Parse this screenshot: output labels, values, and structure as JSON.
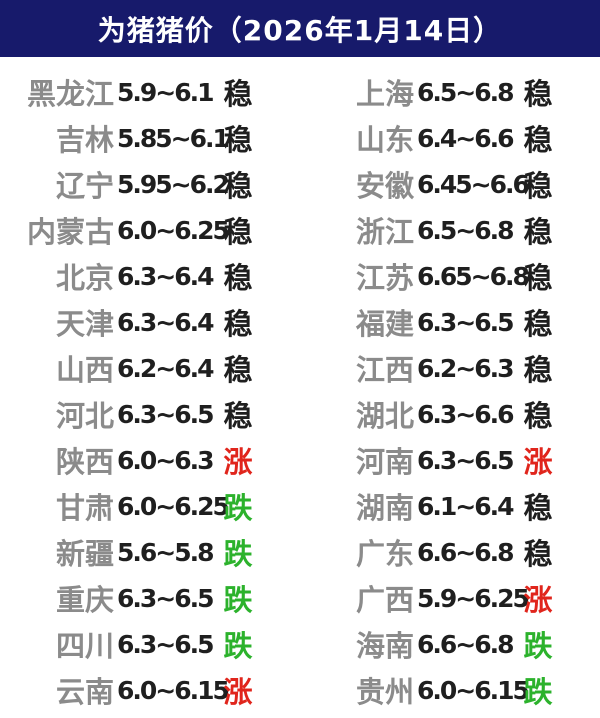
{
  "header": {
    "title": "为猪猪价（2026年1月14日）"
  },
  "colors": {
    "header_bg": "#171a6b",
    "title_text": "#ffffff",
    "province": "#8b8b8b",
    "price": "#1f1f1f",
    "stable": "#1f1f1f",
    "up": "#e0251c",
    "down": "#2cb22c"
  },
  "chart_data": {
    "type": "table",
    "title": "为猪猪价（2026年1月14日）",
    "layout": "two-column, left column rows 0-13, right column rows 14-27",
    "rows": [
      {
        "province": "黑龙江",
        "range": "5.9~6.1",
        "trend": "稳"
      },
      {
        "province": "吉林",
        "range": "5.85~6.1",
        "trend": "稳"
      },
      {
        "province": "辽宁",
        "range": "5.95~6.2",
        "trend": "稳"
      },
      {
        "province": "内蒙古",
        "range": "6.0~6.25",
        "trend": "稳"
      },
      {
        "province": "北京",
        "range": "6.3~6.4",
        "trend": "稳"
      },
      {
        "province": "天津",
        "range": "6.3~6.4",
        "trend": "稳"
      },
      {
        "province": "山西",
        "range": "6.2~6.4",
        "trend": "稳"
      },
      {
        "province": "河北",
        "range": "6.3~6.5",
        "trend": "稳"
      },
      {
        "province": "陕西",
        "range": "6.0~6.3",
        "trend": "涨"
      },
      {
        "province": "甘肃",
        "range": "6.0~6.25",
        "trend": "跌"
      },
      {
        "province": "新疆",
        "range": "5.6~5.8",
        "trend": "跌"
      },
      {
        "province": "重庆",
        "range": "6.3~6.5",
        "trend": "跌"
      },
      {
        "province": "四川",
        "range": "6.3~6.5",
        "trend": "跌"
      },
      {
        "province": "云南",
        "range": "6.0~6.15",
        "trend": "涨"
      },
      {
        "province": "上海",
        "range": "6.5~6.8",
        "trend": "稳"
      },
      {
        "province": "山东",
        "range": "6.4~6.6",
        "trend": "稳"
      },
      {
        "province": "安徽",
        "range": "6.45~6.6",
        "trend": "稳"
      },
      {
        "province": "浙江",
        "range": "6.5~6.8",
        "trend": "稳"
      },
      {
        "province": "江苏",
        "range": "6.65~6.8",
        "trend": "稳"
      },
      {
        "province": "福建",
        "range": "6.3~6.5",
        "trend": "稳"
      },
      {
        "province": "江西",
        "range": "6.2~6.3",
        "trend": "稳"
      },
      {
        "province": "湖北",
        "range": "6.3~6.6",
        "trend": "稳"
      },
      {
        "province": "河南",
        "range": "6.3~6.5",
        "trend": "涨"
      },
      {
        "province": "湖南",
        "range": "6.1~6.4",
        "trend": "稳"
      },
      {
        "province": "广东",
        "range": "6.6~6.8",
        "trend": "稳"
      },
      {
        "province": "广西",
        "range": "5.9~6.25",
        "trend": "涨"
      },
      {
        "province": "海南",
        "range": "6.6~6.8",
        "trend": "跌"
      },
      {
        "province": "贵州",
        "range": "6.0~6.15",
        "trend": "跌"
      }
    ]
  }
}
